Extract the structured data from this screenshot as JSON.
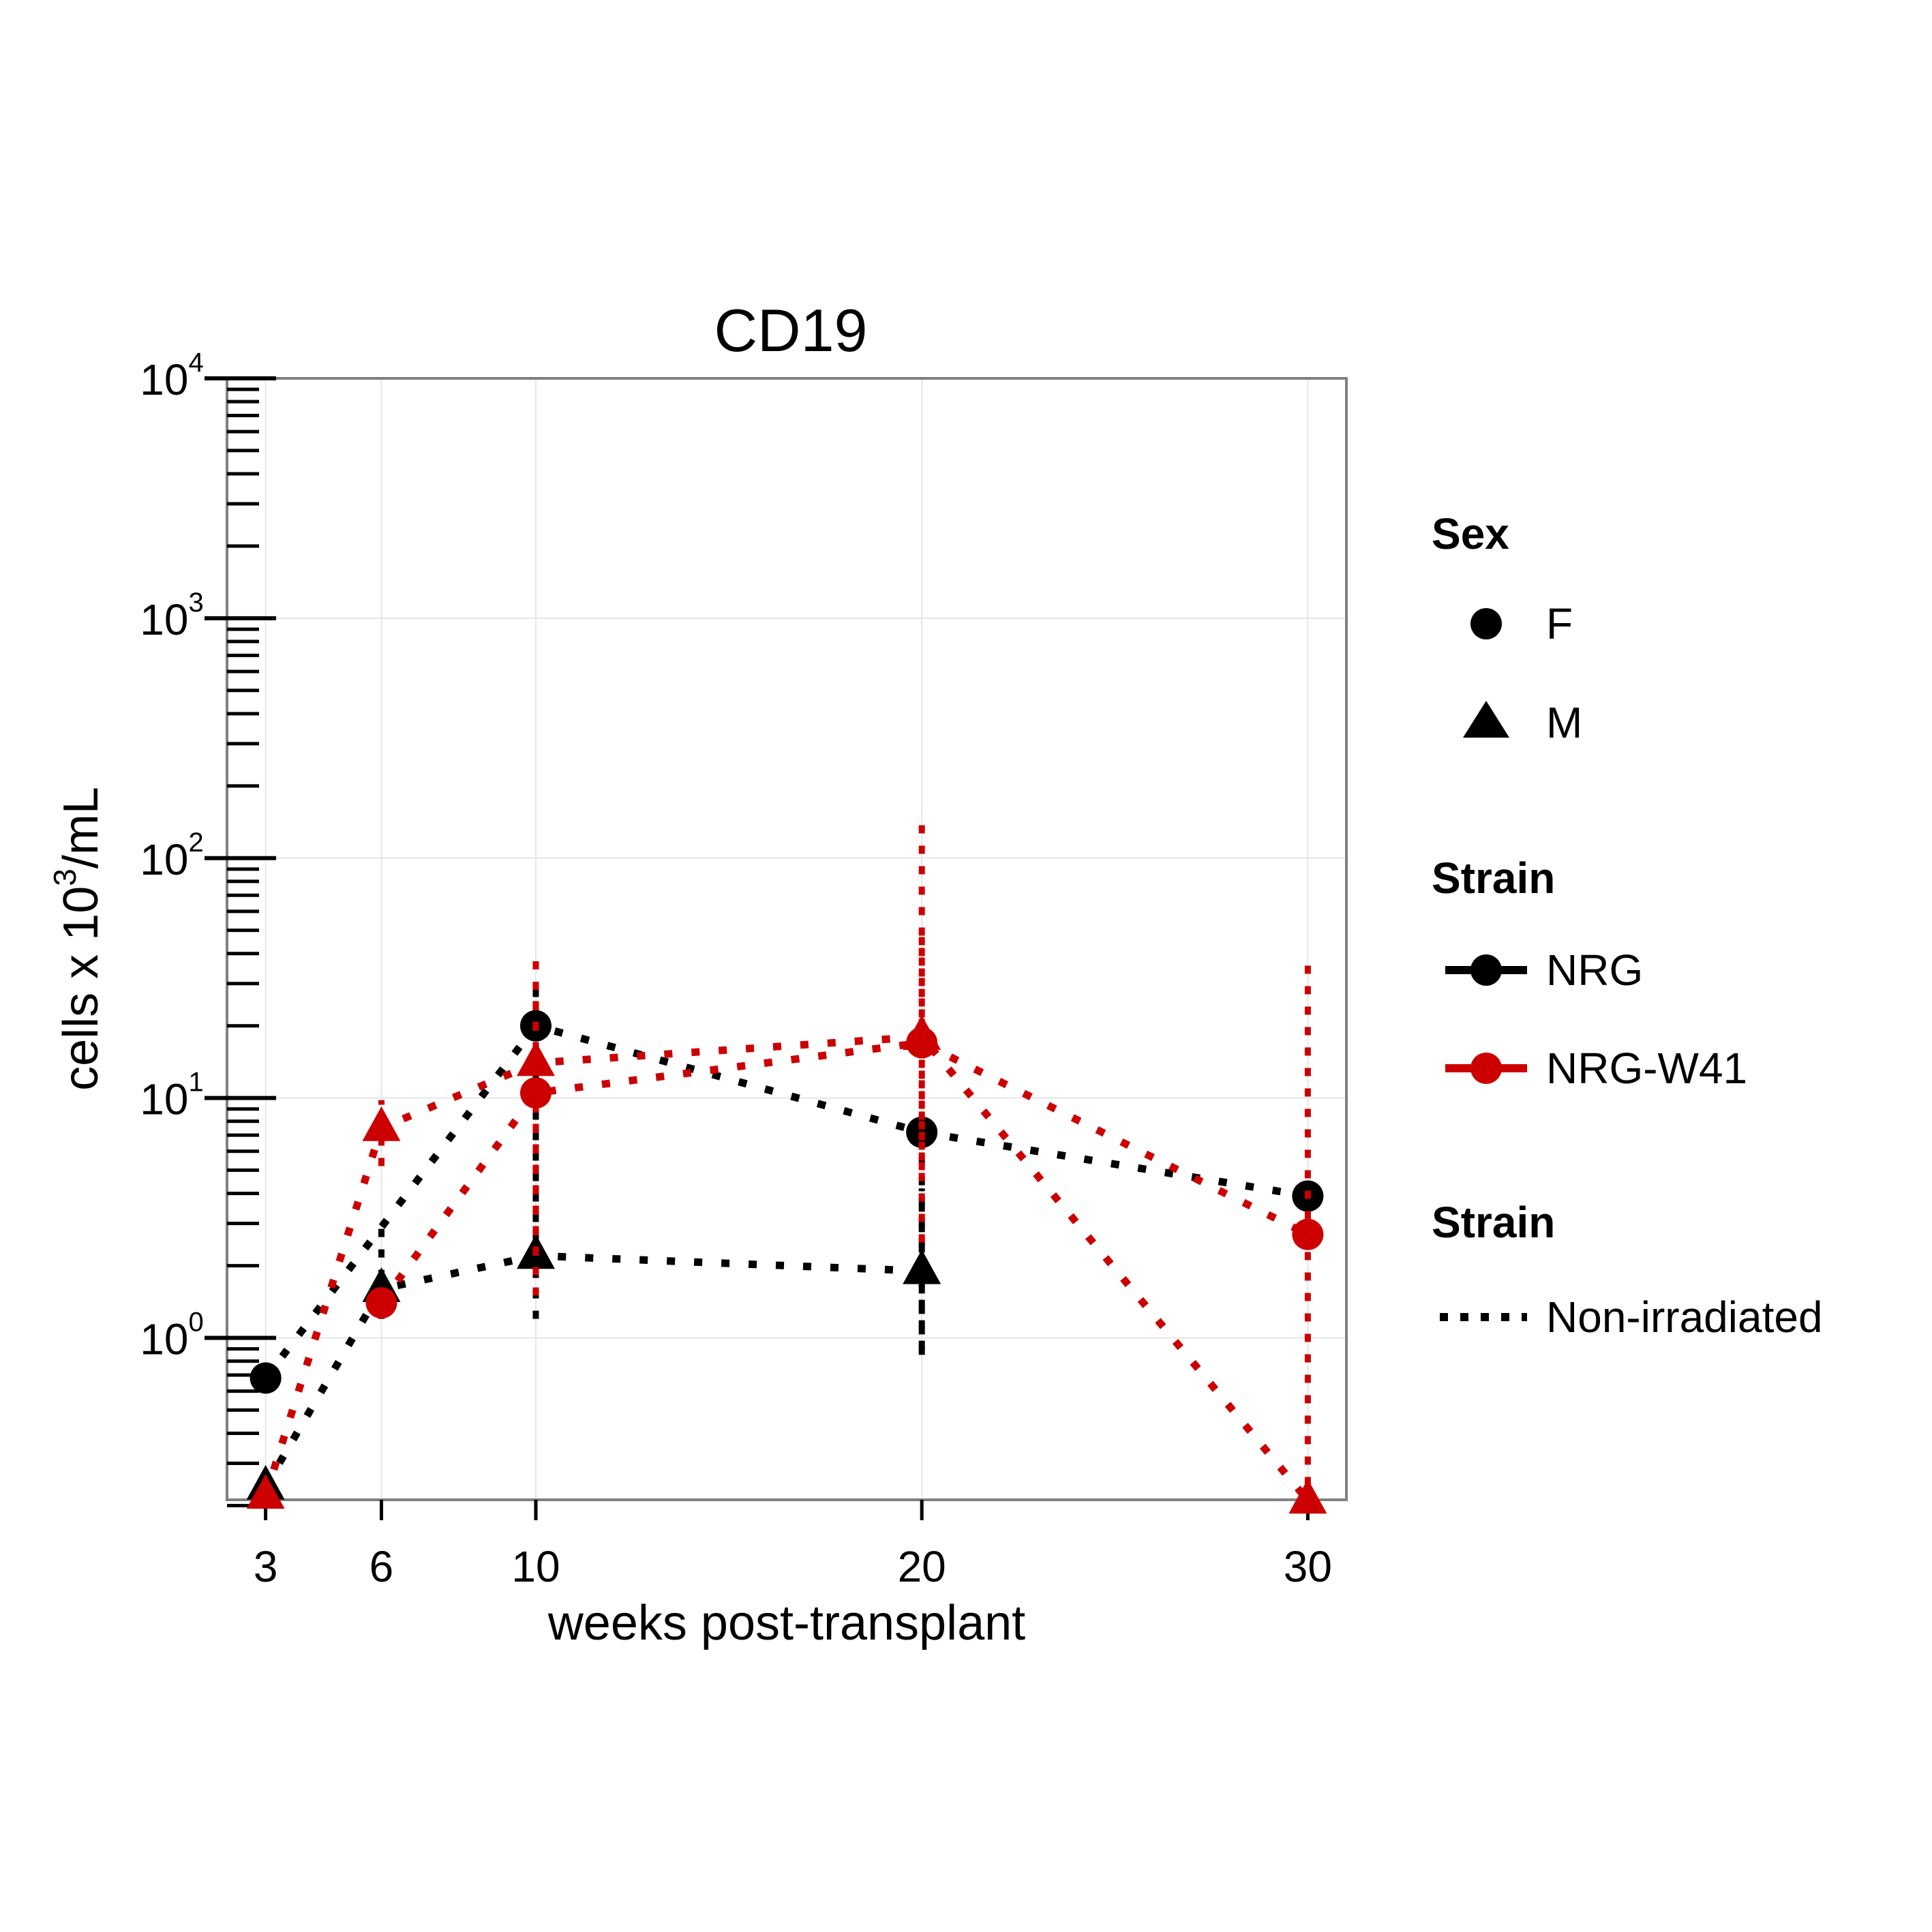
{
  "colors": {
    "NRG": "#000000",
    "NRG-W41": "#cc0000",
    "grid": "#e6e6e6",
    "panel_border": "#808080"
  },
  "chart_data": {
    "type": "line",
    "title": "CD19",
    "xlabel": "weeks post-transplant",
    "ylabel": "cells x 10³/mL",
    "ylabel_parts": {
      "base": "cells x 10",
      "exp": "3",
      "unit": "/mL"
    },
    "y_scale": "log10",
    "ylim": [
      0.2,
      10000
    ],
    "xlim": [
      2,
      31
    ],
    "x_ticks": [
      3,
      6,
      10,
      20,
      30
    ],
    "y_ticks": [
      1,
      10,
      100,
      1000,
      10000
    ],
    "y_tick_labels": [
      {
        "base": "10",
        "exp": "0"
      },
      {
        "base": "10",
        "exp": "1"
      },
      {
        "base": "10",
        "exp": "2"
      },
      {
        "base": "10",
        "exp": "3"
      },
      {
        "base": "10",
        "exp": "4"
      }
    ],
    "grid": true,
    "series": [
      {
        "strain": "NRG",
        "sex": "F",
        "x": [
          3,
          10,
          20,
          30
        ],
        "y": [
          0.68,
          20,
          7.2,
          3.9
        ],
        "error": [
          null,
          [
            2.5,
            30
          ],
          [
            0.9,
            8
          ],
          null
        ]
      },
      {
        "strain": "NRG",
        "sex": "M",
        "x": [
          3,
          6,
          10,
          20
        ],
        "y": [
          0.24,
          1.6,
          2.2,
          1.9
        ],
        "error": [
          null,
          [
            1.2,
            3.2
          ],
          [
            1.2,
            3.6
          ],
          [
            0.85,
            4.2
          ]
        ]
      },
      {
        "strain": "NRG-W41",
        "sex": "F",
        "x": [
          6,
          10,
          20,
          30
        ],
        "y": [
          1.4,
          10.5,
          17,
          2.7
        ],
        "error": [
          null,
          [
            2.2,
            40
          ],
          [
            2.5,
            150
          ],
          [
            0.2,
            36
          ]
        ]
      },
      {
        "strain": "NRG-W41",
        "sex": "M",
        "x": [
          3,
          6,
          10,
          20,
          30
        ],
        "y": [
          0.22,
          7.5,
          14,
          18,
          0.21
        ],
        "error": [
          null,
          [
            5.2,
            9.8
          ],
          [
            1.5,
            30
          ],
          [
            5,
            50
          ],
          null
        ]
      }
    ],
    "legend": {
      "placement": "right",
      "sections": [
        {
          "title": "Sex",
          "items": [
            {
              "label": "F",
              "shape": "circle"
            },
            {
              "label": "M",
              "shape": "triangle"
            }
          ]
        },
        {
          "title": "Strain",
          "items": [
            {
              "label": "NRG",
              "color_key": "NRG"
            },
            {
              "label": "NRG-W41",
              "color_key": "NRG-W41"
            }
          ]
        },
        {
          "title": "Strain",
          "items": [
            {
              "label": "Non-irradiated",
              "linetype": "dotted"
            }
          ]
        }
      ]
    }
  }
}
